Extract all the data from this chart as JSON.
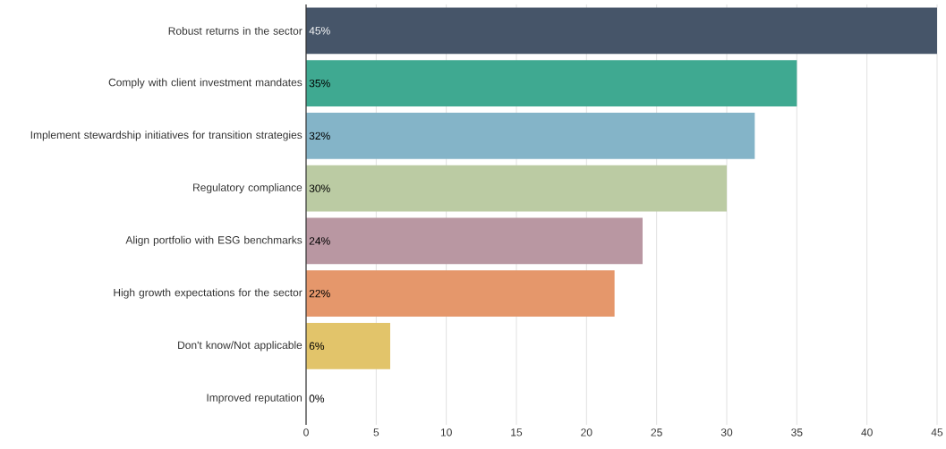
{
  "chart_data": {
    "type": "bar",
    "orientation": "horizontal",
    "categories": [
      "Robust returns in the sector",
      "Comply with client investment mandates",
      "Implement stewardship initiatives for transition strategies",
      "Regulatory compliance",
      "Align portfolio with ESG benchmarks",
      "High growth expectations for the sector",
      "Don't know/Not applicable",
      "Improved reputation"
    ],
    "values": [
      45,
      35,
      32,
      30,
      24,
      22,
      6,
      0
    ],
    "value_labels": [
      "45%",
      "35%",
      "32%",
      "30%",
      "24%",
      "22%",
      "6%",
      "0%"
    ],
    "colors": [
      "#465569",
      "#3fa991",
      "#84b4c8",
      "#bbcba3",
      "#b997a2",
      "#e5976b",
      "#e2c46a",
      "#cccccc"
    ],
    "xlim": [
      0,
      45
    ],
    "xticks": [
      0,
      5,
      10,
      15,
      20,
      25,
      30,
      35,
      40,
      45
    ],
    "grid": "x"
  }
}
